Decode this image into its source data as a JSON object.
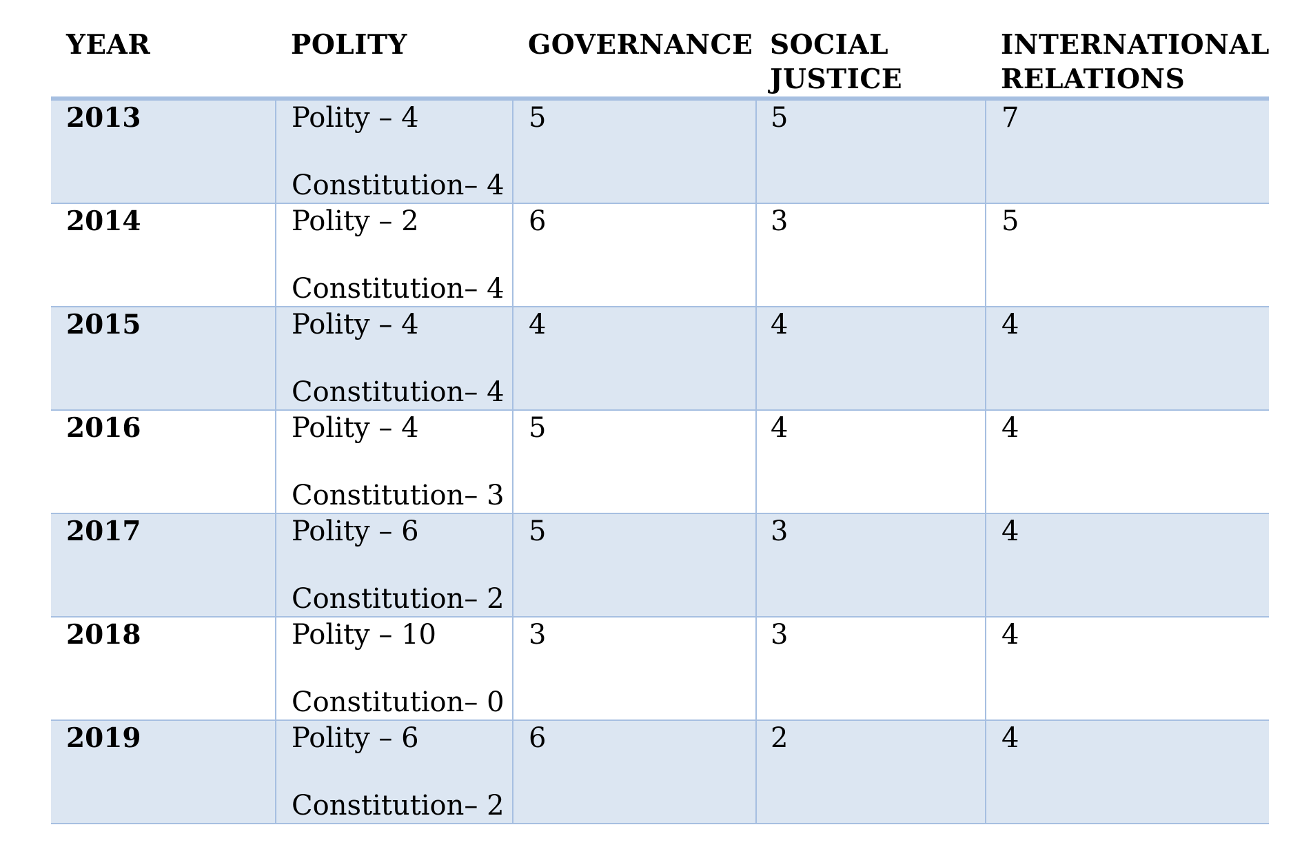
{
  "table": {
    "headers": {
      "year": "YEAR",
      "polity": "POLITY",
      "governance": "GOVERNANCE",
      "social_justice_1": "SOCIAL",
      "social_justice_2": "JUSTICE",
      "international_relations_1": "INTERNATIONAL",
      "international_relations_2": "RELATIONS"
    },
    "rows": [
      {
        "year": "2013",
        "polity": "Polity – 4",
        "constitution": "Constitution– 4",
        "governance": "5",
        "social_justice": "5",
        "international_relations": "7"
      },
      {
        "year": "2014",
        "polity": "Polity – 2",
        "constitution": "Constitution– 4",
        "governance": "6",
        "social_justice": "3",
        "international_relations": "5"
      },
      {
        "year": "2015",
        "polity": "Polity – 4",
        "constitution": "Constitution– 4",
        "governance": "4",
        "social_justice": "4",
        "international_relations": "4"
      },
      {
        "year": "2016",
        "polity": "Polity – 4",
        "constitution": "Constitution– 3",
        "governance": "5",
        "social_justice": "4",
        "international_relations": "4"
      },
      {
        "year": "2017",
        "polity": "Polity – 6",
        "constitution": "Constitution– 2",
        "governance": "5",
        "social_justice": "3",
        "international_relations": "4"
      },
      {
        "year": "2018",
        "polity": "Polity – 10",
        "constitution": "Constitution– 0",
        "governance": "3",
        "social_justice": "3",
        "international_relations": "4"
      },
      {
        "year": "2019",
        "polity": "Polity – 6",
        "constitution": "Constitution– 2",
        "governance": "6",
        "social_justice": "2",
        "international_relations": "4"
      }
    ]
  },
  "colors": {
    "row_shade": "#dce6f2",
    "border": "#a6bfe1"
  }
}
